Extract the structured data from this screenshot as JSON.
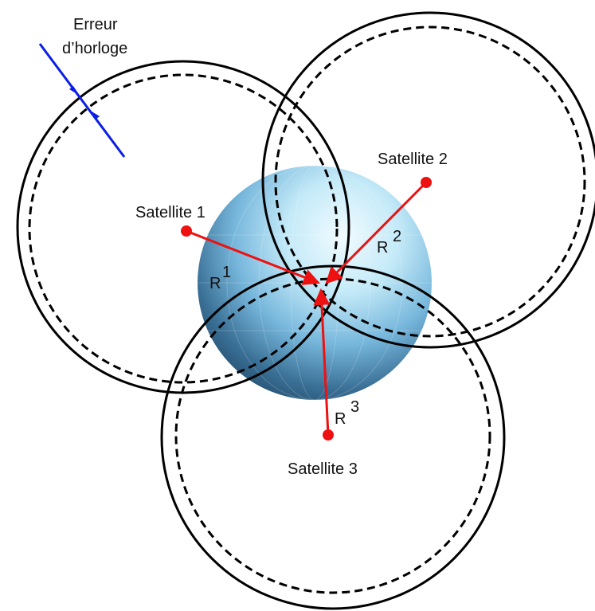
{
  "annotation": {
    "line1": "Erreur",
    "line2": "d’horloge"
  },
  "satellites": [
    {
      "name": "Satellite 1",
      "range_label": "R",
      "range_index": "1"
    },
    {
      "name": "Satellite 2",
      "range_label": "R",
      "range_index": "2"
    },
    {
      "name": "Satellite 3",
      "range_label": "R",
      "range_index": "3"
    }
  ],
  "colors": {
    "circle": "#000000",
    "range_line": "#ee1111",
    "satellite_dot": "#ee1111",
    "error_arrow": "#0a1ee6",
    "globe_light": "#f2fbff",
    "globe_mid": "#8fcbe8",
    "globe_dark": "#1f4d6e"
  }
}
